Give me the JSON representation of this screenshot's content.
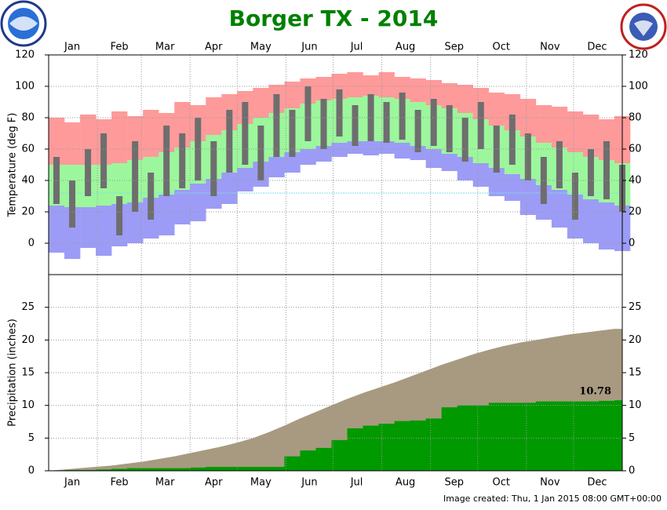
{
  "title": "Borger TX - 2014",
  "footer": "Image created: Thu, 1 Jan 2015 08:00 GMT+00:00",
  "chart_data": [
    {
      "type": "bar",
      "ylabel": "Temperature (deg F)",
      "x": [
        1,
        11,
        21,
        31,
        41,
        51,
        61,
        71,
        81,
        91,
        101,
        111,
        121,
        131,
        141,
        151,
        161,
        171,
        181,
        191,
        201,
        211,
        221,
        231,
        241,
        251,
        261,
        271,
        281,
        291,
        301,
        311,
        321,
        331,
        341,
        351,
        361
      ],
      "bar_days": 10,
      "xlim": [
        1,
        366
      ],
      "xticks": [
        {
          "value": 16,
          "label": "Jan"
        },
        {
          "value": 46,
          "label": "Feb"
        },
        {
          "value": 75,
          "label": "Mar"
        },
        {
          "value": 106,
          "label": "Apr"
        },
        {
          "value": 136,
          "label": "May"
        },
        {
          "value": 167,
          "label": "Jun"
        },
        {
          "value": 197,
          "label": "Jul"
        },
        {
          "value": 228,
          "label": "Aug"
        },
        {
          "value": 259,
          "label": "Sep"
        },
        {
          "value": 289,
          "label": "Oct"
        },
        {
          "value": 320,
          "label": "Nov"
        },
        {
          "value": 350,
          "label": "Dec"
        }
      ],
      "xgrid": [
        32,
        60,
        91,
        121,
        152,
        182,
        213,
        244,
        274,
        305,
        335
      ],
      "ylim": [
        -20,
        120
      ],
      "yticks": [
        0,
        20,
        40,
        60,
        80,
        100,
        120
      ],
      "grid": true,
      "reference_line": 32,
      "reference_color": "#80e0e0",
      "record_high": {
        "color": "#ff9a9a",
        "values": [
          80,
          77,
          82,
          79,
          84,
          81,
          85,
          83,
          90,
          88,
          93,
          95,
          97,
          99,
          101,
          103,
          105,
          106,
          108,
          109,
          107,
          109,
          106,
          105,
          104,
          102,
          101,
          99,
          96,
          95,
          92,
          88,
          87,
          84,
          82,
          79,
          81
        ]
      },
      "normal_high": {
        "color": "#9cf79c",
        "values": [
          50,
          50,
          50,
          50,
          51,
          53,
          55,
          58,
          61,
          65,
          69,
          72,
          76,
          80,
          83,
          86,
          89,
          91,
          92,
          93,
          94,
          93,
          92,
          90,
          88,
          86,
          83,
          79,
          75,
          72,
          68,
          64,
          61,
          58,
          55,
          53,
          51
        ]
      },
      "normal_low": {
        "color": "#9c9cf7",
        "values": [
          24,
          23,
          23,
          24,
          25,
          26,
          29,
          31,
          34,
          38,
          41,
          45,
          48,
          52,
          55,
          58,
          60,
          62,
          64,
          65,
          65,
          65,
          64,
          62,
          60,
          57,
          55,
          51,
          48,
          44,
          41,
          37,
          34,
          31,
          28,
          26,
          24
        ]
      },
      "record_low": {
        "values": [
          -6,
          -10,
          -3,
          -8,
          -2,
          0,
          3,
          5,
          12,
          14,
          22,
          25,
          33,
          36,
          42,
          45,
          50,
          52,
          55,
          57,
          56,
          57,
          54,
          53,
          48,
          46,
          40,
          36,
          30,
          27,
          18,
          15,
          10,
          3,
          0,
          -4,
          -5
        ]
      },
      "observed_high": {
        "color": "#6e6e6e",
        "values": [
          55,
          40,
          60,
          70,
          30,
          65,
          45,
          75,
          70,
          80,
          65,
          85,
          90,
          75,
          95,
          85,
          100,
          92,
          98,
          88,
          95,
          90,
          96,
          85,
          92,
          88,
          80,
          90,
          75,
          82,
          70,
          55,
          65,
          45,
          60,
          65,
          50
        ]
      },
      "observed_low": {
        "values": [
          25,
          10,
          30,
          35,
          5,
          20,
          15,
          30,
          35,
          40,
          30,
          45,
          50,
          40,
          55,
          55,
          65,
          60,
          68,
          62,
          65,
          64,
          66,
          58,
          62,
          58,
          52,
          60,
          45,
          50,
          40,
          25,
          35,
          15,
          30,
          28,
          20
        ]
      }
    },
    {
      "type": "area",
      "ylabel": "Precipitation (inches)",
      "x": [
        1,
        11,
        21,
        31,
        41,
        51,
        61,
        71,
        81,
        91,
        101,
        111,
        121,
        131,
        141,
        151,
        161,
        171,
        181,
        191,
        201,
        211,
        221,
        231,
        241,
        251,
        261,
        271,
        281,
        291,
        301,
        311,
        321,
        331,
        341,
        351,
        361
      ],
      "xlim": [
        1,
        366
      ],
      "xticks": [
        {
          "value": 16,
          "label": "Jan"
        },
        {
          "value": 46,
          "label": "Feb"
        },
        {
          "value": 75,
          "label": "Mar"
        },
        {
          "value": 106,
          "label": "Apr"
        },
        {
          "value": 136,
          "label": "May"
        },
        {
          "value": 167,
          "label": "Jun"
        },
        {
          "value": 197,
          "label": "Jul"
        },
        {
          "value": 228,
          "label": "Aug"
        },
        {
          "value": 259,
          "label": "Sep"
        },
        {
          "value": 289,
          "label": "Oct"
        },
        {
          "value": 320,
          "label": "Nov"
        },
        {
          "value": 350,
          "label": "Dec"
        }
      ],
      "xgrid": [
        32,
        60,
        91,
        121,
        152,
        182,
        213,
        244,
        274,
        305,
        335
      ],
      "ylim": [
        0,
        30
      ],
      "yticks": [
        0,
        5,
        10,
        15,
        20,
        25
      ],
      "grid": true,
      "series": [
        {
          "color": "#a89a80",
          "step": false,
          "values": [
            0.02,
            0.2,
            0.4,
            0.6,
            0.8,
            1.1,
            1.4,
            1.8,
            2.2,
            2.7,
            3.2,
            3.7,
            4.3,
            5.0,
            5.9,
            6.9,
            8.0,
            9.0,
            10.0,
            11.0,
            11.9,
            12.7,
            13.5,
            14.4,
            15.3,
            16.2,
            17.0,
            17.8,
            18.5,
            19.1,
            19.6,
            20.0,
            20.4,
            20.8,
            21.1,
            21.4,
            21.7
          ]
        },
        {
          "color": "#009900",
          "step": true,
          "values": [
            0,
            0.1,
            0.1,
            0.2,
            0.3,
            0.4,
            0.4,
            0.4,
            0.4,
            0.5,
            0.6,
            0.6,
            0.6,
            0.6,
            0.6,
            2.2,
            3.1,
            3.5,
            4.7,
            6.5,
            6.9,
            7.2,
            7.6,
            7.7,
            8.0,
            9.7,
            10.0,
            10.0,
            10.4,
            10.4,
            10.4,
            10.6,
            10.6,
            10.6,
            10.6,
            10.7,
            10.78
          ]
        }
      ],
      "end_label_series": 1
    }
  ]
}
